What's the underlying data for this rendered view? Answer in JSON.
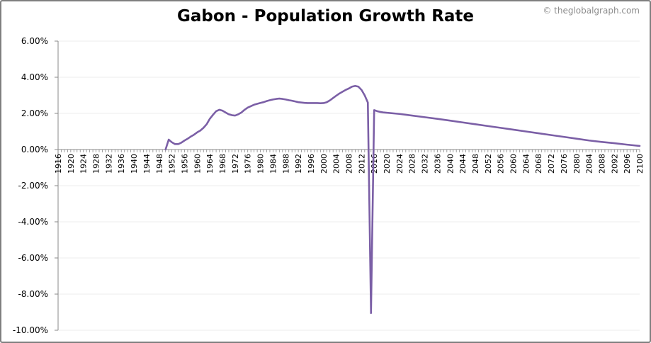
{
  "header": {
    "title": "Gabon - Population Growth Rate",
    "credit": "© theglobalgraph.com"
  },
  "chart_data": {
    "type": "line",
    "title": "Gabon - Population Growth Rate",
    "xlabel": "",
    "ylabel": "",
    "xlim": [
      1916,
      2100
    ],
    "ylim": [
      -10,
      6
    ],
    "y_tick_values": [
      6,
      4,
      2,
      0,
      -2,
      -4,
      -6,
      -8,
      -10
    ],
    "y_tick_labels": [
      "6.00%",
      "4.00%",
      "2.00%",
      "0.00%",
      "-2.00%",
      "-4.00%",
      "-6.00%",
      "-8.00%",
      "-10.00%"
    ],
    "x_tick_labels": [
      "1916",
      "1920",
      "1924",
      "1928",
      "1932",
      "1936",
      "1940",
      "1944",
      "1948",
      "1952",
      "1956",
      "1960",
      "1964",
      "1968",
      "1972",
      "1976",
      "1980",
      "1984",
      "1988",
      "1992",
      "1996",
      "2000",
      "2004",
      "2008",
      "2012",
      "2016",
      "2020",
      "2024",
      "2028",
      "2032",
      "2036",
      "2040",
      "2044",
      "2048",
      "2052",
      "2056",
      "2060",
      "2064",
      "2068",
      "2072",
      "2076",
      "2080",
      "2084",
      "2088",
      "2092",
      "2096",
      "2100"
    ],
    "grid": true,
    "legend": "none",
    "line_color": "#7b5fa6",
    "series": [
      {
        "x": [
          1950,
          1951,
          1952,
          1953,
          1954,
          1955,
          1956,
          1957,
          1958,
          1959,
          1960,
          1961,
          1962,
          1963,
          1964,
          1965,
          1966,
          1967,
          1968,
          1969,
          1970,
          1971,
          1972,
          1973,
          1974,
          1975,
          1976,
          1977,
          1978,
          1979,
          1980,
          1981,
          1982,
          1983,
          1984,
          1985,
          1986,
          1987,
          1988,
          1989,
          1990,
          1991,
          1992,
          1993,
          1994,
          1995,
          1996,
          1997,
          1998,
          1999,
          2000,
          2001,
          2002,
          2003,
          2004,
          2005,
          2006,
          2007,
          2008,
          2009,
          2010,
          2011,
          2012,
          2013,
          2014,
          2015,
          2016,
          2017,
          2018,
          2019,
          2024,
          2028,
          2032,
          2036,
          2040,
          2044,
          2048,
          2052,
          2056,
          2060,
          2064,
          2068,
          2072,
          2076,
          2080,
          2084,
          2088,
          2092,
          2096,
          2100
        ],
        "values": [
          0.0,
          0.55,
          0.4,
          0.3,
          0.3,
          0.38,
          0.5,
          0.6,
          0.72,
          0.82,
          0.95,
          1.05,
          1.2,
          1.4,
          1.7,
          1.92,
          2.12,
          2.2,
          2.15,
          2.05,
          1.95,
          1.9,
          1.88,
          1.95,
          2.05,
          2.2,
          2.32,
          2.4,
          2.48,
          2.53,
          2.58,
          2.62,
          2.68,
          2.73,
          2.77,
          2.8,
          2.82,
          2.8,
          2.77,
          2.73,
          2.7,
          2.66,
          2.62,
          2.6,
          2.58,
          2.57,
          2.57,
          2.57,
          2.57,
          2.56,
          2.57,
          2.62,
          2.72,
          2.85,
          2.98,
          3.1,
          3.2,
          3.3,
          3.38,
          3.48,
          3.52,
          3.48,
          3.3,
          3.0,
          2.6,
          -9.05,
          2.18,
          2.12,
          2.08,
          2.05,
          1.97,
          1.88,
          1.79,
          1.7,
          1.6,
          1.5,
          1.4,
          1.3,
          1.2,
          1.1,
          1.0,
          0.9,
          0.8,
          0.7,
          0.6,
          0.5,
          0.42,
          0.35,
          0.27,
          0.2
        ]
      }
    ]
  }
}
